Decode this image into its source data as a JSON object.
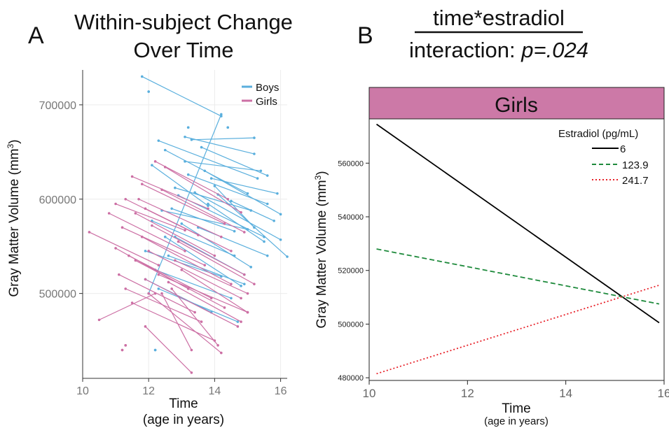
{
  "colors": {
    "boys": "#5aafdd",
    "girls": "#cc6fa4",
    "strip": "#cc79a7",
    "e6": "#000000",
    "e123": "#1e8a3c",
    "e241": "#e8222a"
  },
  "panel_a": {
    "letter": "A",
    "title_line1": "Within-subject Change",
    "title_line2": "Over Time",
    "legend_boys": "Boys",
    "legend_girls": "Girls",
    "ylabel_main": "Gray Matter Volume  (mm",
    "ylabel_sup": "3",
    "ylabel_end": ")",
    "xlabel_line1": "Time",
    "xlabel_line2": "(age in years)"
  },
  "panel_b": {
    "letter": "B",
    "title_line1": "time*estradiol",
    "title_line2_plain": "interaction: ",
    "title_line2_italic": "p=.024",
    "strip_label": "Girls",
    "legend_title": "Estradiol (pg/mL)",
    "ylabel_main": "Gray Matter Volume (mm",
    "ylabel_sup": "3",
    "ylabel_end": ")",
    "xlabel_line1": "Time",
    "xlabel_line2": "(age in years)"
  },
  "chart_data": [
    {
      "type": "line",
      "panel": "A",
      "title": "Within-subject Change Over Time",
      "xlabel": "Time (age in years)",
      "ylabel": "Gray Matter Volume (mm3)",
      "xlim": [
        10,
        16.2
      ],
      "ylim": [
        410000,
        737000
      ],
      "xticks": [
        10,
        12,
        14,
        16
      ],
      "yticks": [
        500000,
        600000,
        700000
      ],
      "ytick_labels": [
        "500000",
        "600000",
        "700000"
      ],
      "grid": true,
      "legend": "top-right",
      "series": [
        {
          "name": "Boys",
          "color": "#5aafdd",
          "segments": [
            [
              [
                11.8,
                730000
              ],
              [
                14.2,
                688000
              ]
            ],
            [
              [
                12.0,
                714000
              ],
              [
                12.0,
                714000
              ]
            ],
            [
              [
                12.1,
                636000
              ],
              [
                13.8,
                593000
              ]
            ],
            [
              [
                12.3,
                662000
              ],
              [
                15.3,
                622000
              ]
            ],
            [
              [
                12.5,
                652000
              ],
              [
                15.0,
                606000
              ]
            ],
            [
              [
                13.1,
                666000
              ],
              [
                15.2,
                648000
              ]
            ],
            [
              [
                13.2,
                676000
              ],
              [
                13.2,
                676000
              ]
            ],
            [
              [
                13.3,
                663000
              ],
              [
                15.2,
                665000
              ]
            ],
            [
              [
                14.4,
                676000
              ],
              [
                14.4,
                676000
              ]
            ],
            [
              [
                13.1,
                640000
              ],
              [
                15.4,
                630000
              ]
            ],
            [
              [
                13.6,
                655000
              ],
              [
                15.6,
                625000
              ]
            ],
            [
              [
                13.9,
                622000
              ],
              [
                15.9,
                606000
              ]
            ],
            [
              [
                12.8,
                612000
              ],
              [
                15.1,
                588000
              ]
            ],
            [
              [
                13.2,
                626000
              ],
              [
                15.6,
                595000
              ]
            ],
            [
              [
                13.7,
                630000
              ],
              [
                16.0,
                584000
              ]
            ],
            [
              [
                14.0,
                614000
              ],
              [
                15.2,
                570000
              ]
            ],
            [
              [
                12.9,
                604000
              ],
              [
                15.5,
                560000
              ]
            ],
            [
              [
                12.4,
                588000
              ],
              [
                15.0,
                568000
              ]
            ],
            [
              [
                13.4,
                607000
              ],
              [
                16.0,
                557000
              ]
            ],
            [
              [
                14.1,
                605000
              ],
              [
                16.2,
                539000
              ]
            ],
            [
              [
                12.7,
                590000
              ],
              [
                14.6,
                566000
              ]
            ],
            [
              [
                13.8,
                595000
              ],
              [
                15.5,
                555000
              ]
            ],
            [
              [
                12.1,
                577000
              ],
              [
                14.6,
                540000
              ]
            ],
            [
              [
                13.0,
                574000
              ],
              [
                15.1,
                528000
              ]
            ],
            [
              [
                12.5,
                560000
              ],
              [
                14.8,
                508000
              ]
            ],
            [
              [
                11.9,
                545000
              ],
              [
                14.2,
                518000
              ]
            ],
            [
              [
                12.8,
                560000
              ],
              [
                14.9,
                520000
              ]
            ],
            [
              [
                13.5,
                570000
              ],
              [
                15.6,
                540000
              ]
            ],
            [
              [
                12.0,
                500000
              ],
              [
                14.2,
                690000
              ]
            ],
            [
              [
                12.2,
                525000
              ],
              [
                14.5,
                495000
              ]
            ],
            [
              [
                12.3,
                505000
              ],
              [
                14.7,
                470000
              ]
            ],
            [
              [
                11.9,
                515000
              ],
              [
                13.9,
                480000
              ]
            ],
            [
              [
                12.6,
                540000
              ],
              [
                14.9,
                510000
              ]
            ],
            [
              [
                14.5,
                598000
              ],
              [
                15.8,
                577000
              ]
            ],
            [
              [
                12.2,
                440000
              ],
              [
                12.2,
                440000
              ]
            ]
          ]
        },
        {
          "name": "Girls",
          "color": "#cc6fa4",
          "segments": [
            [
              [
                10.2,
                565000
              ],
              [
                12.3,
                530000
              ]
            ],
            [
              [
                10.5,
                472000
              ],
              [
                12.2,
                500000
              ]
            ],
            [
              [
                11.0,
                595000
              ],
              [
                13.1,
                567000
              ]
            ],
            [
              [
                11.5,
                624000
              ],
              [
                13.8,
                590000
              ]
            ],
            [
              [
                11.3,
                600000
              ],
              [
                13.5,
                562000
              ]
            ],
            [
              [
                11.8,
                616000
              ],
              [
                14.3,
                574000
              ]
            ],
            [
              [
                12.2,
                640000
              ],
              [
                14.4,
                600000
              ]
            ],
            [
              [
                12.5,
                634000
              ],
              [
                14.8,
                586000
              ]
            ],
            [
              [
                11.2,
                570000
              ],
              [
                13.7,
                530000
              ]
            ],
            [
              [
                11.0,
                548000
              ],
              [
                13.2,
                505000
              ]
            ],
            [
              [
                11.6,
                585000
              ],
              [
                14.0,
                540000
              ]
            ],
            [
              [
                11.9,
                590000
              ],
              [
                14.5,
                545000
              ]
            ],
            [
              [
                12.4,
                610000
              ],
              [
                14.9,
                565000
              ]
            ],
            [
              [
                11.4,
                540000
              ],
              [
                13.9,
                495000
              ]
            ],
            [
              [
                11.8,
                560000
              ],
              [
                14.5,
                510000
              ]
            ],
            [
              [
                12.1,
                572000
              ],
              [
                14.9,
                520000
              ]
            ],
            [
              [
                11.1,
                520000
              ],
              [
                13.4,
                480000
              ]
            ],
            [
              [
                11.6,
                535000
              ],
              [
                14.3,
                485000
              ]
            ],
            [
              [
                12.0,
                545000
              ],
              [
                14.8,
                495000
              ]
            ],
            [
              [
                11.3,
                505000
              ],
              [
                13.6,
                470000
              ]
            ],
            [
              [
                11.9,
                515000
              ],
              [
                14.7,
                465000
              ]
            ],
            [
              [
                12.3,
                520000
              ],
              [
                15.0,
                480000
              ]
            ],
            [
              [
                11.5,
                490000
              ],
              [
                14.0,
                450000
              ]
            ],
            [
              [
                12.0,
                500000
              ],
              [
                14.2,
                437000
              ]
            ],
            [
              [
                12.4,
                500000
              ],
              [
                13.3,
                440000
              ]
            ],
            [
              [
                12.7,
                505000
              ],
              [
                14.1,
                445000
              ]
            ],
            [
              [
                11.9,
                465000
              ],
              [
                13.3,
                416000
              ]
            ],
            [
              [
                11.3,
                445000
              ],
              [
                11.3,
                445000
              ]
            ],
            [
              [
                11.2,
                440000
              ],
              [
                11.2,
                440000
              ]
            ],
            [
              [
                12.8,
                535000
              ],
              [
                15.0,
                500000
              ]
            ],
            [
              [
                13.0,
                525000
              ],
              [
                15.0,
                480000
              ]
            ],
            [
              [
                12.6,
                512000
              ],
              [
                14.8,
                470000
              ]
            ],
            [
              [
                10.8,
                585000
              ],
              [
                13.1,
                545000
              ]
            ],
            [
              [
                11.7,
                600000
              ],
              [
                14.2,
                560000
              ]
            ],
            [
              [
                12.9,
                555000
              ],
              [
                15.2,
                510000
              ]
            ]
          ]
        }
      ]
    },
    {
      "type": "line",
      "panel": "B",
      "title": "time*estradiol interaction: p=.024",
      "facet": "Girls",
      "xlabel": "Time (age in years)",
      "ylabel": "Gray Matter Volume (mm3)",
      "xlim": [
        10,
        16
      ],
      "ylim": [
        479000,
        576500
      ],
      "xticks": [
        10,
        12,
        14,
        16
      ],
      "yticks": [
        480000,
        500000,
        520000,
        540000,
        560000
      ],
      "ytick_labels": [
        "480000",
        "500000",
        "520000",
        "540000",
        "560000"
      ],
      "legend": "top-right",
      "legend_title": "Estradiol (pg/mL)",
      "series": [
        {
          "name": "6",
          "color": "#000000",
          "dash": "solid",
          "points": [
            [
              10.15,
              574500
            ],
            [
              15.9,
              500500
            ]
          ]
        },
        {
          "name": "123.9",
          "color": "#1e8a3c",
          "dash": "dashed",
          "points": [
            [
              10.15,
              528000
            ],
            [
              15.9,
              507500
            ]
          ]
        },
        {
          "name": "241.7",
          "color": "#e8222a",
          "dash": "dotted",
          "points": [
            [
              10.15,
              481500
            ],
            [
              15.9,
              514500
            ]
          ]
        }
      ]
    }
  ]
}
